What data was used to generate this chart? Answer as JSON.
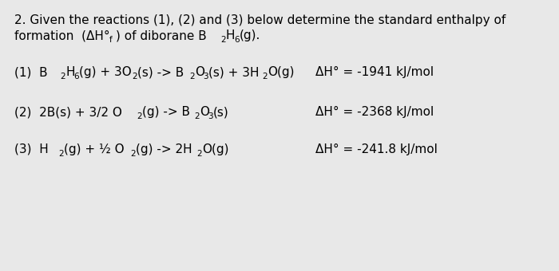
{
  "background_color": "#e8e8e8",
  "font_size": 11.0,
  "font_size_sub": 7.5,
  "color": "black",
  "title_line1": "2. Given the reactions (1), (2) and (3) below determine the standard enthalpy of",
  "r1_enthalpy": "ΔH° = -1941 kJ/mol",
  "r2_enthalpy": "ΔH° = -2368 kJ/mol",
  "r3_enthalpy": "ΔH° = -241.8 kJ/mol"
}
